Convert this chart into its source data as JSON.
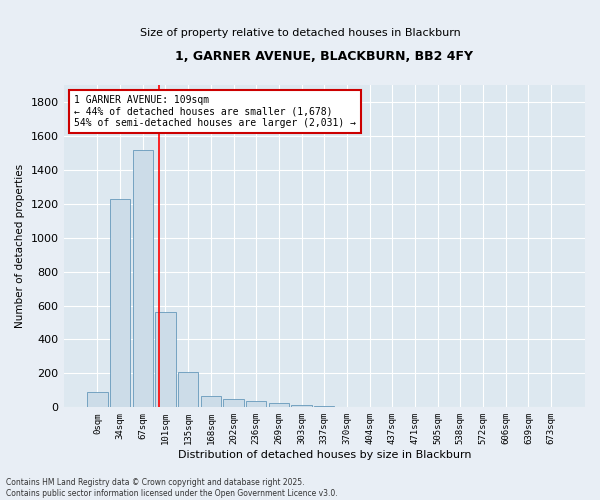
{
  "title": "1, GARNER AVENUE, BLACKBURN, BB2 4FY",
  "subtitle": "Size of property relative to detached houses in Blackburn",
  "xlabel": "Distribution of detached houses by size in Blackburn",
  "ylabel": "Number of detached properties",
  "bar_color": "#ccdce8",
  "bar_edge_color": "#6699bb",
  "background_color": "#dde8f0",
  "fig_background_color": "#e8eef5",
  "grid_color": "#ffffff",
  "categories": [
    "0sqm",
    "34sqm",
    "67sqm",
    "101sqm",
    "135sqm",
    "168sqm",
    "202sqm",
    "236sqm",
    "269sqm",
    "303sqm",
    "337sqm",
    "370sqm",
    "404sqm",
    "437sqm",
    "471sqm",
    "505sqm",
    "538sqm",
    "572sqm",
    "606sqm",
    "639sqm",
    "673sqm"
  ],
  "values": [
    90,
    1230,
    1515,
    560,
    210,
    65,
    47,
    35,
    25,
    12,
    5,
    2,
    1,
    0,
    0,
    0,
    0,
    0,
    0,
    0,
    0
  ],
  "ylim": [
    0,
    1900
  ],
  "yticks": [
    0,
    200,
    400,
    600,
    800,
    1000,
    1200,
    1400,
    1600,
    1800
  ],
  "property_line_bin": 2.72,
  "annotation_text": "1 GARNER AVENUE: 109sqm\n← 44% of detached houses are smaller (1,678)\n54% of semi-detached houses are larger (2,031) →",
  "annotation_box_color": "#cc0000",
  "footnote": "Contains HM Land Registry data © Crown copyright and database right 2025.\nContains public sector information licensed under the Open Government Licence v3.0."
}
